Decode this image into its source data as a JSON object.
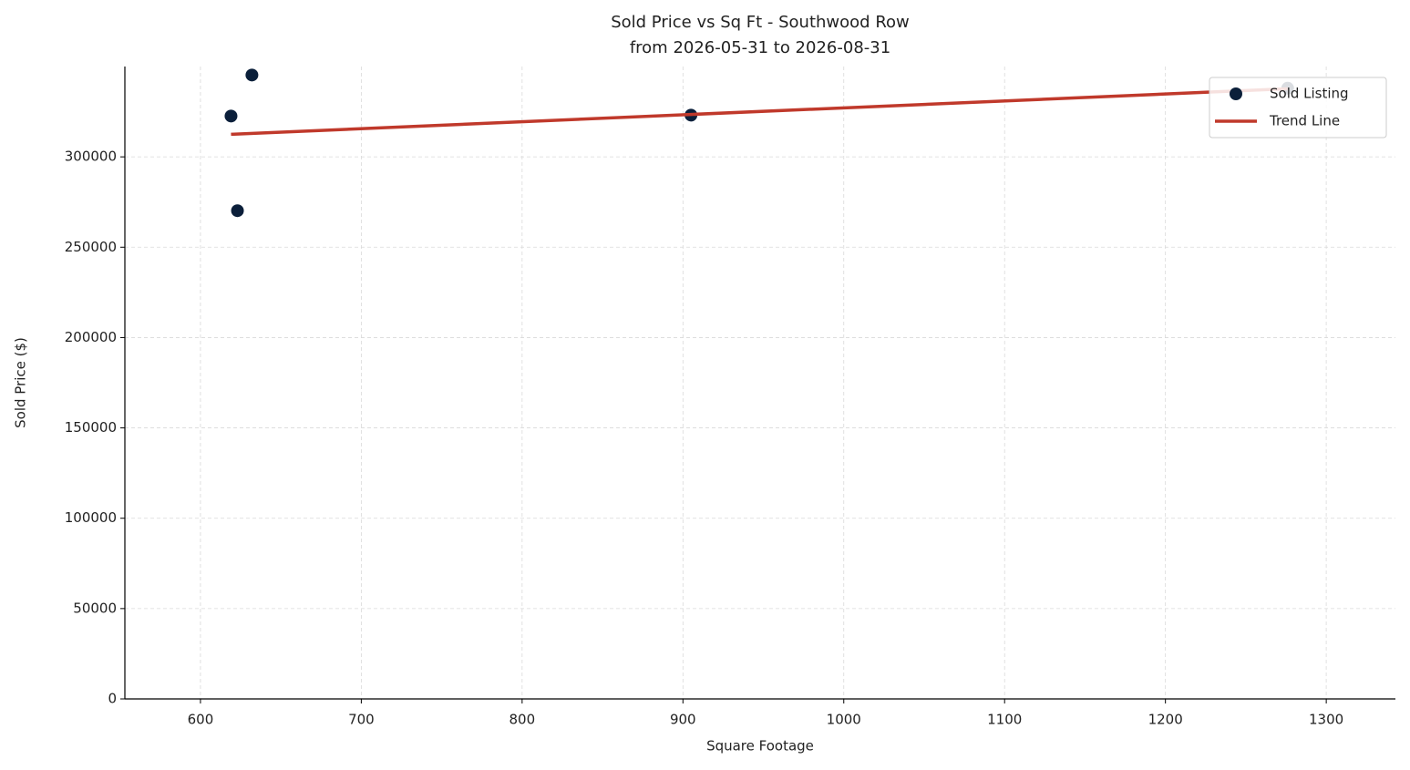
{
  "chart_data": {
    "type": "scatter",
    "title": "Sold Price vs Sq Ft - Southwood Row",
    "subtitle": "from 2026-05-31 to 2026-08-31",
    "x_label": "Square Footage",
    "y_label": "Sold Price ($)",
    "series": [
      {
        "name": "Sold Listing",
        "type": "scatter",
        "color": "#0b1f3a",
        "x": [
          619,
          632,
          623,
          905,
          1276
        ],
        "values": [
          322600,
          345300,
          270200,
          323100,
          338000
        ]
      },
      {
        "name": "Trend Line",
        "type": "line",
        "color": "#c0392b",
        "x": [
          619,
          1276
        ],
        "values": [
          312500,
          337700
        ]
      }
    ],
    "xlim": [
      553,
      1343
    ],
    "ylim": [
      0,
      350000
    ],
    "xticks": [
      600,
      700,
      800,
      900,
      1000,
      1100,
      1200,
      1300
    ],
    "yticks": [
      0,
      50000,
      100000,
      150000,
      200000,
      250000,
      300000
    ],
    "grid": true,
    "legend": "upper-right"
  }
}
